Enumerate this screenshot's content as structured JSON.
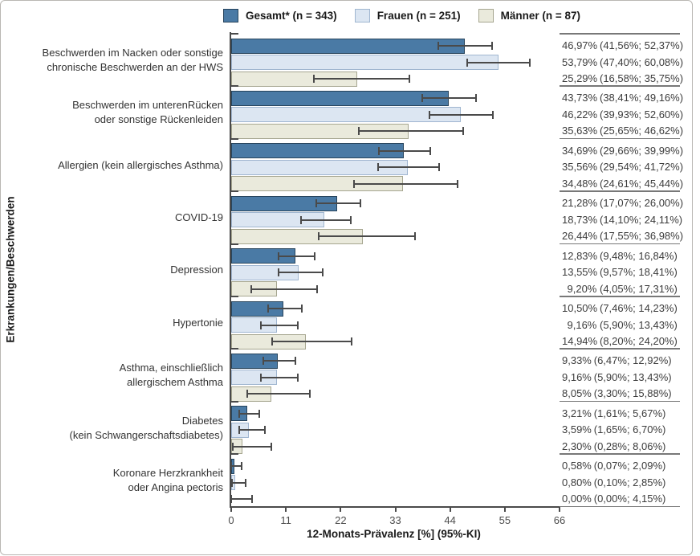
{
  "legend": {
    "items": [
      {
        "label": "Gesamt* (n = 343)",
        "color": "#4a7aa5",
        "border": "#27445c"
      },
      {
        "label": "Frauen (n = 251)",
        "color": "#dce6f2",
        "border": "#a0b6d0"
      },
      {
        "label": "Männer (n = 87)",
        "color": "#eaeadc",
        "border": "#a6a690"
      }
    ]
  },
  "chart_data": {
    "type": "bar",
    "orientation": "horizontal",
    "xlabel": "12-Monats-Prävalenz [%] (95%-KI)",
    "ylabel": "Erkrankungen/Beschwerden",
    "xlim": [
      0,
      66
    ],
    "xticks": [
      0,
      11,
      22,
      33,
      44,
      55,
      66
    ],
    "grid": false,
    "legend_position": "top",
    "categories": [
      [
        "Beschwerden im Nacken oder sonstige",
        "chronische Beschwerden an der HWS"
      ],
      [
        "Beschwerden im unterenRücken",
        "oder sonstige Rückenleiden"
      ],
      [
        "Allergien (kein allergisches Asthma)"
      ],
      [
        "COVID-19"
      ],
      [
        "Depression"
      ],
      [
        "Hypertonie"
      ],
      [
        "Asthma, einschließlich",
        "allergischem Asthma"
      ],
      [
        "Diabetes",
        "(kein Schwangerschaftsdiabetes)"
      ],
      [
        "Koronare Herzkrankheit",
        "oder Angina pectoris"
      ]
    ],
    "series": [
      {
        "name": "Gesamt* (n = 343)",
        "color": "#4a7aa5",
        "border": "#27445c",
        "values": [
          46.97,
          43.73,
          34.69,
          21.28,
          12.83,
          10.5,
          9.33,
          3.21,
          0.58
        ],
        "ci_low": [
          41.56,
          38.41,
          29.66,
          17.07,
          9.48,
          7.46,
          6.47,
          1.61,
          0.07
        ],
        "ci_high": [
          52.37,
          49.16,
          39.99,
          26.0,
          16.84,
          14.23,
          12.92,
          5.67,
          2.09
        ]
      },
      {
        "name": "Frauen (n = 251)",
        "color": "#dce6f2",
        "border": "#a0b6d0",
        "values": [
          53.79,
          46.22,
          35.56,
          18.73,
          13.55,
          9.16,
          9.16,
          3.59,
          0.8
        ],
        "ci_low": [
          47.4,
          39.93,
          29.54,
          14.1,
          9.57,
          5.9,
          5.9,
          1.65,
          0.1
        ],
        "ci_high": [
          60.08,
          52.6,
          41.72,
          24.11,
          18.41,
          13.43,
          13.43,
          6.7,
          2.85
        ]
      },
      {
        "name": "Männer (n = 87)",
        "color": "#eaeadc",
        "border": "#a6a690",
        "values": [
          25.29,
          35.63,
          34.48,
          26.44,
          9.2,
          14.94,
          8.05,
          2.3,
          0.0
        ],
        "ci_low": [
          16.58,
          25.65,
          24.61,
          17.55,
          4.05,
          8.2,
          3.3,
          0.28,
          0.0
        ],
        "ci_high": [
          35.75,
          46.62,
          45.44,
          36.98,
          17.31,
          24.2,
          15.88,
          8.06,
          4.15
        ]
      }
    ],
    "value_labels": [
      [
        {
          "value": "46,97%",
          "ci": "(41,56%; 52,37%)"
        },
        {
          "value": "53,79%",
          "ci": "(47,40%; 60,08%)"
        },
        {
          "value": "25,29%",
          "ci": "(16,58%; 35,75%)"
        }
      ],
      [
        {
          "value": "43,73%",
          "ci": "(38,41%; 49,16%)"
        },
        {
          "value": "46,22%",
          "ci": "(39,93%; 52,60%)"
        },
        {
          "value": "35,63%",
          "ci": "(25,65%; 46,62%)"
        }
      ],
      [
        {
          "value": "34,69%",
          "ci": "(29,66%; 39,99%)"
        },
        {
          "value": "35,56%",
          "ci": "(29,54%; 41,72%)"
        },
        {
          "value": "34,48%",
          "ci": "(24,61%; 45,44%)"
        }
      ],
      [
        {
          "value": "21,28%",
          "ci": "(17,07%; 26,00%)"
        },
        {
          "value": "18,73%",
          "ci": "(14,10%; 24,11%)"
        },
        {
          "value": "26,44%",
          "ci": "(17,55%; 36,98%)"
        }
      ],
      [
        {
          "value": "12,83%",
          "ci": "(9,48%; 16,84%)"
        },
        {
          "value": "13,55%",
          "ci": "(9,57%; 18,41%)"
        },
        {
          "value": "9,20%",
          "ci": "(4,05%; 17,31%)"
        }
      ],
      [
        {
          "value": "10,50%",
          "ci": "(7,46%; 14,23%)"
        },
        {
          "value": "9,16%",
          "ci": "(5,90%; 13,43%)"
        },
        {
          "value": "14,94%",
          "ci": "(8,20%; 24,20%)"
        }
      ],
      [
        {
          "value": "9,33%",
          "ci": "(6,47%; 12,92%)"
        },
        {
          "value": "9,16%",
          "ci": "(5,90%; 13,43%)"
        },
        {
          "value": "8,05%",
          "ci": "(3,30%; 15,88%)"
        }
      ],
      [
        {
          "value": "3,21%",
          "ci": "(1,61%; 5,67%)"
        },
        {
          "value": "3,59%",
          "ci": "(1,65%; 6,70%)"
        },
        {
          "value": "2,30%",
          "ci": "(0,28%; 8,06%)"
        }
      ],
      [
        {
          "value": "0,58%",
          "ci": "(0,07%; 2,09%)"
        },
        {
          "value": "0,80%",
          "ci": "(0,10%; 2,85%)"
        },
        {
          "value": "0,00%",
          "ci": "(0,00%; 4,15%)"
        }
      ]
    ]
  }
}
